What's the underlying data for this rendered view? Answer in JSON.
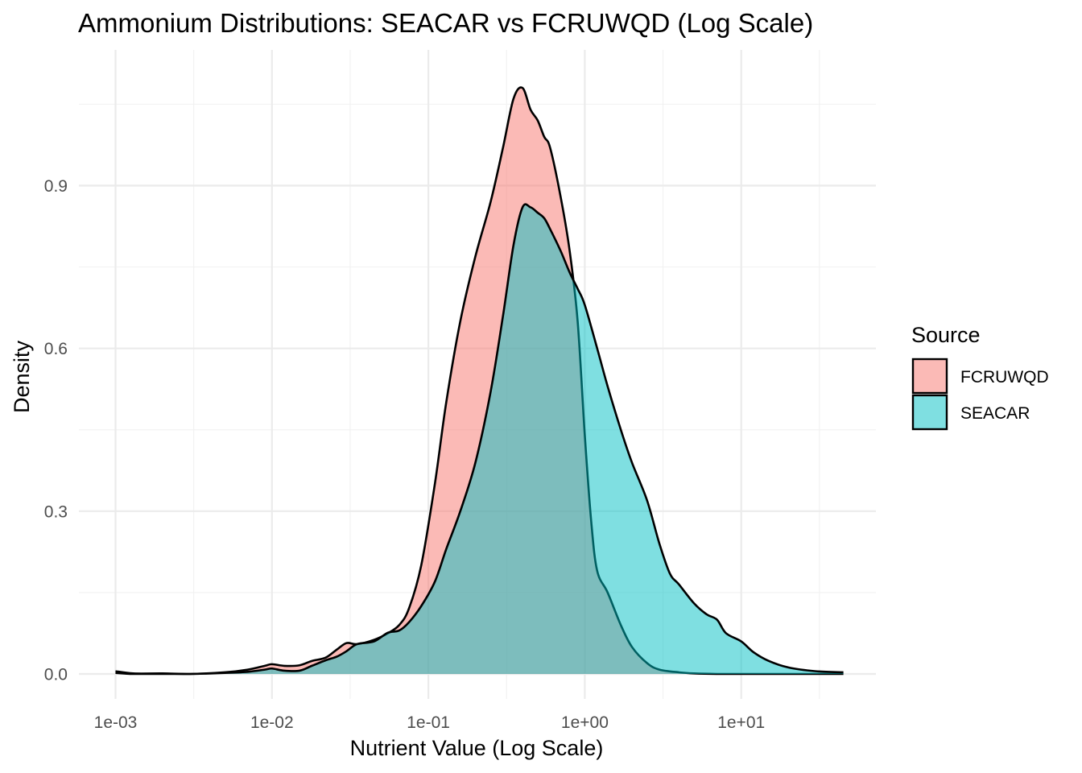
{
  "chart_data": {
    "type": "area",
    "title": "Ammonium Distributions: SEACAR vs FCRUWQD (Log Scale)",
    "xlabel": "Nutrient Value (Log Scale)",
    "ylabel": "Density",
    "x_scale": "log10",
    "xlim": [
      0.001,
      45
    ],
    "ylim": [
      -0.05,
      1.14
    ],
    "x_ticks": [
      {
        "value": 0.001,
        "label": "1e-03"
      },
      {
        "value": 0.01,
        "label": "1e-02"
      },
      {
        "value": 0.1,
        "label": "1e-01"
      },
      {
        "value": 1,
        "label": "1e+00"
      },
      {
        "value": 10,
        "label": "1e+01"
      }
    ],
    "y_ticks": [
      {
        "value": 0.0,
        "label": "0.0"
      },
      {
        "value": 0.3,
        "label": "0.3"
      },
      {
        "value": 0.6,
        "label": "0.6"
      },
      {
        "value": 0.9,
        "label": "0.9"
      }
    ],
    "grid": true,
    "legend": {
      "title": "Source",
      "position": "right"
    },
    "series": [
      {
        "name": "FCRUWQD",
        "color": "#F8766D",
        "opacity": 0.5,
        "x": [
          0.001,
          0.0013,
          0.002,
          0.003,
          0.005,
          0.007,
          0.009,
          0.01,
          0.012,
          0.015,
          0.018,
          0.022,
          0.026,
          0.03,
          0.035,
          0.045,
          0.055,
          0.065,
          0.075,
          0.09,
          0.11,
          0.13,
          0.16,
          0.2,
          0.25,
          0.3,
          0.35,
          0.4,
          0.45,
          0.5,
          0.55,
          0.6,
          0.7,
          0.8,
          0.9,
          1.0,
          1.1,
          1.2,
          1.4,
          1.7,
          2.0,
          2.5,
          3.0,
          4.0,
          5.0,
          7.0,
          10.0,
          15.0,
          20.0,
          30.0,
          45.0
        ],
        "y": [
          0.005,
          0.001,
          0.001,
          0.0,
          0.003,
          0.008,
          0.015,
          0.018,
          0.015,
          0.016,
          0.024,
          0.03,
          0.045,
          0.057,
          0.055,
          0.063,
          0.075,
          0.09,
          0.12,
          0.2,
          0.35,
          0.5,
          0.65,
          0.77,
          0.87,
          0.97,
          1.06,
          1.08,
          1.04,
          1.02,
          0.99,
          0.97,
          0.88,
          0.78,
          0.65,
          0.44,
          0.28,
          0.19,
          0.15,
          0.09,
          0.05,
          0.02,
          0.008,
          0.003,
          0.001,
          0.0,
          0.0,
          0.0,
          0.0,
          0.0,
          0.0
        ]
      },
      {
        "name": "SEACAR",
        "color": "#00BFC4",
        "opacity": 0.5,
        "x": [
          0.001,
          0.0013,
          0.002,
          0.003,
          0.005,
          0.007,
          0.009,
          0.01,
          0.012,
          0.015,
          0.018,
          0.022,
          0.026,
          0.03,
          0.035,
          0.045,
          0.055,
          0.065,
          0.075,
          0.09,
          0.11,
          0.13,
          0.16,
          0.2,
          0.25,
          0.3,
          0.35,
          0.4,
          0.45,
          0.5,
          0.55,
          0.6,
          0.7,
          0.8,
          0.9,
          1.0,
          1.2,
          1.4,
          1.7,
          2.0,
          2.5,
          3.0,
          3.5,
          4.0,
          5.0,
          6.0,
          7.0,
          8.0,
          10.0,
          12.0,
          15.0,
          20.0,
          30.0,
          45.0
        ],
        "y": [
          0.002,
          0.0,
          0.0,
          0.0,
          0.002,
          0.004,
          0.008,
          0.01,
          0.006,
          0.006,
          0.015,
          0.025,
          0.032,
          0.042,
          0.055,
          0.06,
          0.076,
          0.08,
          0.095,
          0.125,
          0.17,
          0.23,
          0.3,
          0.39,
          0.52,
          0.66,
          0.79,
          0.86,
          0.86,
          0.85,
          0.84,
          0.82,
          0.78,
          0.74,
          0.71,
          0.68,
          0.6,
          0.53,
          0.45,
          0.39,
          0.32,
          0.24,
          0.185,
          0.165,
          0.13,
          0.11,
          0.1,
          0.075,
          0.06,
          0.04,
          0.024,
          0.012,
          0.005,
          0.003
        ]
      }
    ]
  }
}
